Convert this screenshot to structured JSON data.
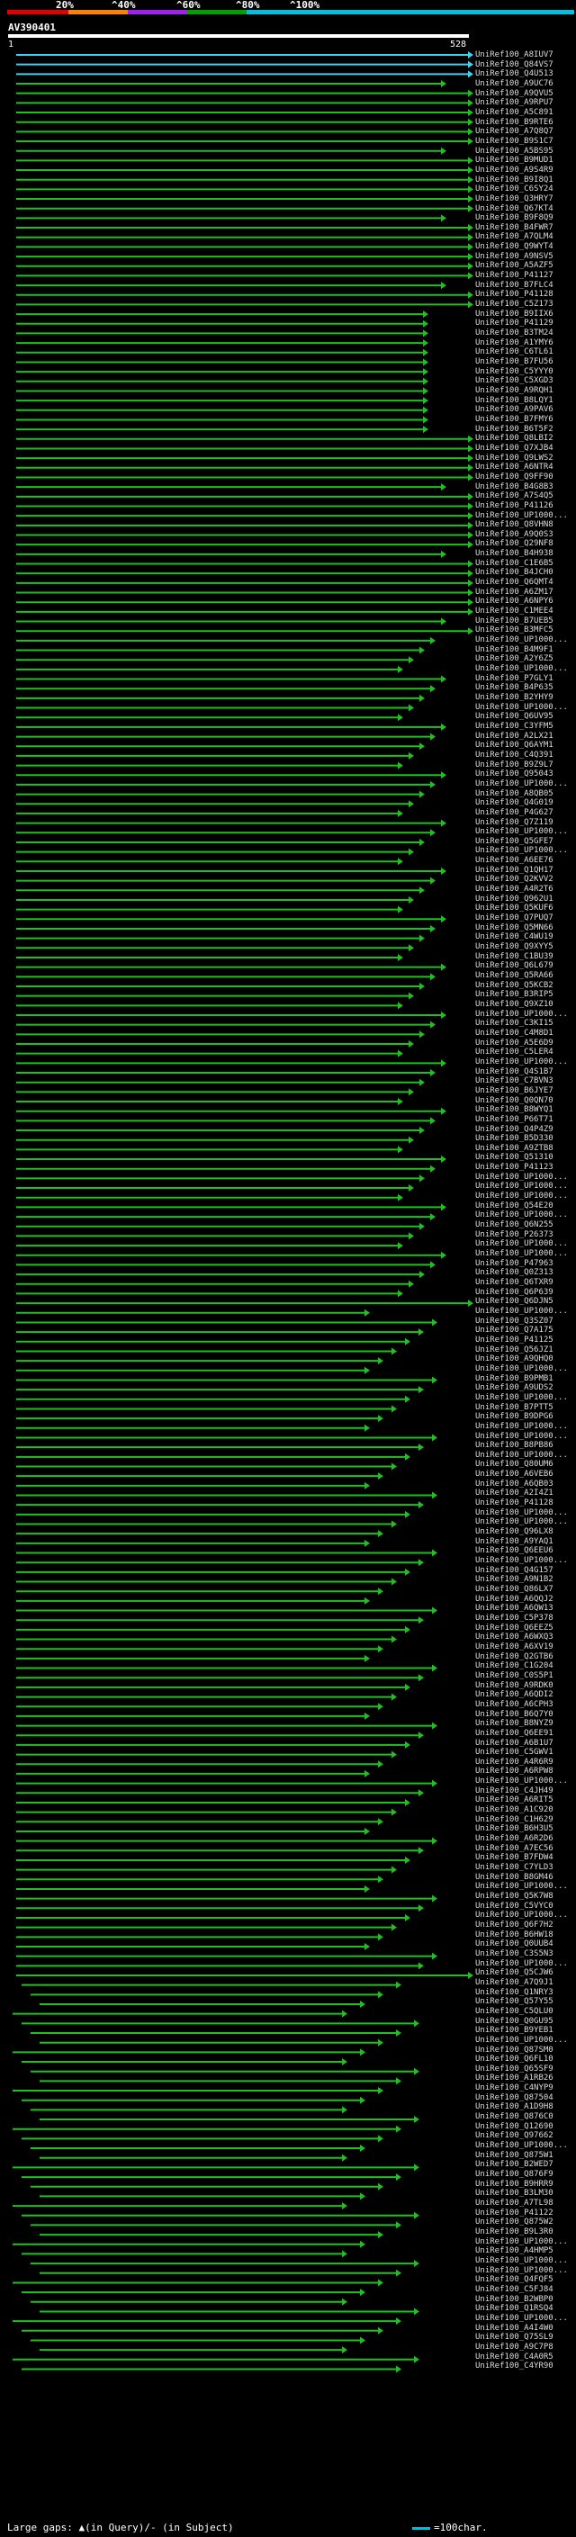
{
  "scale": {
    "labels": [
      "20%",
      "^40%",
      "^60%",
      "^80%",
      "^100%"
    ],
    "colors": [
      "#e00000",
      "#ff8000",
      "#a020f0",
      "#00a000",
      "#00c0e0"
    ]
  },
  "query": {
    "name": "AV390401",
    "start": "1",
    "end": "528"
  },
  "legend": {
    "large_gaps": "Large gaps: ▲(in Query)/- (in Subject)",
    "scale_note": "=100char."
  },
  "hits": [
    "UniRef100_A8IUV7",
    "UniRef100_Q84VS7",
    "UniRef100_Q4U513",
    "UniRef100_A9UC76",
    "UniRef100_A9QVU5",
    "UniRef100_A9RPU7",
    "UniRef100_A5C891",
    "UniRef100_B9RTE6",
    "UniRef100_A7Q8Q7",
    "UniRef100_B9S1C7",
    "UniRef100_A5BS95",
    "UniRef100_B9MUD1",
    "UniRef100_A9S4R9",
    "UniRef100_B9I8Q1",
    "UniRef100_C6SY24",
    "UniRef100_Q3HRY7",
    "UniRef100_Q67KT4",
    "UniRef100_B9F8Q9",
    "UniRef100_B4FWR7",
    "UniRef100_A7QLM4",
    "UniRef100_Q9WYT4",
    "UniRef100_A9NSV5",
    "UniRef100_A5AZF5",
    "UniRef100_P41127",
    "UniRef100_B7FLC4",
    "UniRef100_P41128",
    "UniRef100_C5Z173",
    "UniRef100_B9IIX6",
    "UniRef100_P41129",
    "UniRef100_B3TM24",
    "UniRef100_A1YMY6",
    "UniRef100_C6TL61",
    "UniRef100_B7FU56",
    "UniRef100_C5YYY0",
    "UniRef100_C5XGD3",
    "UniRef100_A9RQH1",
    "UniRef100_B8LQY1",
    "UniRef100_A9PAV6",
    "UniRef100_B7FMY6",
    "UniRef100_B6T5F2",
    "UniRef100_Q8LBI2",
    "UniRef100_Q7XJB4",
    "UniRef100_Q9LWS2",
    "UniRef100_A6NTR4",
    "UniRef100_Q9FF90",
    "UniRef100_B4G8B3",
    "UniRef100_A7S4Q5",
    "UniRef100_P41126",
    "UniRef100_UP1000...",
    "UniRef100_Q8VHN8",
    "UniRef100_A9Q0S3",
    "UniRef100_Q29NF8",
    "UniRef100_B4H938",
    "UniRef100_C1E6B5",
    "UniRef100_B4JCH0",
    "UniRef100_Q6QMT4",
    "UniRef100_A6ZM17",
    "UniRef100_A6NPY6",
    "UniRef100_C1MEE4",
    "UniRef100_B7UEB5",
    "UniRef100_B3MFC5",
    "UniRef100_UP1000...",
    "UniRef100_B4M9F1",
    "UniRef100_A2Y6Z5",
    "UniRef100_UP1000...",
    "UniRef100_P7GLY1",
    "UniRef100_B4P635",
    "UniRef100_B2YHY9",
    "UniRef100_UP1000...",
    "UniRef100_Q6UV95",
    "UniRef100_C3YFM5",
    "UniRef100_A2LX21",
    "UniRef100_Q6AYM1",
    "UniRef100_C4Q391",
    "UniRef100_B9Z9L7",
    "UniRef100_Q95043",
    "UniRef100_UP1000...",
    "UniRef100_A8QB05",
    "UniRef100_Q4G019",
    "UniRef100_P4G627",
    "UniRef100_Q7Z119",
    "UniRef100_UP1000...",
    "UniRef100_Q5GFE7",
    "UniRef100_UP1000...",
    "UniRef100_A6EE76",
    "UniRef100_Q1QH17",
    "UniRef100_Q2KVV2",
    "UniRef100_A4R2T6",
    "UniRef100_Q962U1",
    "UniRef100_Q5KUF6",
    "UniRef100_Q7PUQ7",
    "UniRef100_Q5MN66",
    "UniRef100_C4WU19",
    "UniRef100_Q9XYY5",
    "UniRef100_C1BU39",
    "UniRef100_Q6L679",
    "UniRef100_Q5RA66",
    "UniRef100_Q5KCB2",
    "UniRef100_B3RIP5",
    "UniRef100_Q9XZ10",
    "UniRef100_UP1000...",
    "UniRef100_C3KI15",
    "UniRef100_C4M8D1",
    "UniRef100_A5E6D9",
    "UniRef100_C5LER4",
    "UniRef100_UP1000...",
    "UniRef100_Q4S1B7",
    "UniRef100_C7BVN3",
    "UniRef100_B6JYE7",
    "UniRef100_Q0QN70",
    "UniRef100_B8WYQ1",
    "UniRef100_P66T71",
    "UniRef100_Q4P4Z9",
    "UniRef100_B5D330",
    "UniRef100_A9ZTB8",
    "UniRef100_Q51310",
    "UniRef100_P41123",
    "UniRef100_UP1000...",
    "UniRef100_UP1000...",
    "UniRef100_UP1000...",
    "UniRef100_Q54E20",
    "UniRef100_UP1000...",
    "UniRef100_Q6N255",
    "UniRef100_P26373",
    "UniRef100_UP1000...",
    "UniRef100_UP1000...",
    "UniRef100_P47963",
    "UniRef100_Q0Z313",
    "UniRef100_Q6TXR9",
    "UniRef100_Q6P639",
    "UniRef100_Q6DJN5",
    "UniRef100_UP1000...",
    "UniRef100_Q3SZ07",
    "UniRef100_Q7A175",
    "UniRef100_P41125",
    "UniRef100_Q56JZ1",
    "UniRef100_A9QHQ0",
    "UniRef100_UP1000...",
    "UniRef100_B9PMB1",
    "UniRef100_A9UDS2",
    "UniRef100_UP1000...",
    "UniRef100_B7PTT5",
    "UniRef100_B9DPG6",
    "UniRef100_UP1000...",
    "UniRef100_UP1000...",
    "UniRef100_B8PB86",
    "UniRef100_UP1000...",
    "UniRef100_Q80UM6",
    "UniRef100_A6VEB6",
    "UniRef100_A6QB03",
    "UniRef100_A2I4Z1",
    "UniRef100_P41128",
    "UniRef100_UP1000...",
    "UniRef100_UP1000...",
    "UniRef100_Q96LX8",
    "UniRef100_A9YAQ1",
    "UniRef100_Q6EEU6",
    "UniRef100_UP1000...",
    "UniRef100_Q4G157",
    "UniRef100_A9N1B2",
    "UniRef100_Q86LX7",
    "UniRef100_A6QQJ2",
    "UniRef100_A6QW13",
    "UniRef100_C5P378",
    "UniRef100_Q6EEZ5",
    "UniRef100_A6WXQ3",
    "UniRef100_A6XV19",
    "UniRef100_Q2GTB6",
    "UniRef100_C1G204",
    "UniRef100_C0S5P1",
    "UniRef100_A9RDK0",
    "UniRef100_A6QDI2",
    "UniRef100_A6CPH3",
    "UniRef100_B6Q7Y0",
    "UniRef100_B8NYZ9",
    "UniRef100_Q6EE91",
    "UniRef100_A6B1U7",
    "UniRef100_C5GWV1",
    "UniRef100_A4R6R9",
    "UniRef100_A6RPW8",
    "UniRef100_UP1000...",
    "UniRef100_C4JH49",
    "UniRef100_A6RIT5",
    "UniRef100_A1C920",
    "UniRef100_C1H629",
    "UniRef100_B6H3U5",
    "UniRef100_A6R2D6",
    "UniRef100_A7EC56",
    "UniRef100_B7FDW4",
    "UniRef100_C7YLD3",
    "UniRef100_B8GM46",
    "UniRef100_UP1000...",
    "UniRef100_Q5K7W8",
    "UniRef100_C5VYC0",
    "UniRef100_UP1000...",
    "UniRef100_Q6F7H2",
    "UniRef100_B6HW18",
    "UniRef100_Q0UUB4",
    "UniRef100_C3S5N3",
    "UniRef100_UP1000...",
    "UniRef100_Q5CJW6",
    "UniRef100_A7Q9J1",
    "UniRef100_Q1NRY3",
    "UniRef100_Q57Y55",
    "UniRef100_C5QLU0",
    "UniRef100_Q0GU95",
    "UniRef100_B9YEB1",
    "UniRef100_UP1000...",
    "UniRef100_Q87SM0",
    "UniRef100_Q6FL10",
    "UniRef100_Q65SF9",
    "UniRef100_A1RB26",
    "UniRef100_C4NYP9",
    "UniRef100_Q87504",
    "UniRef100_A1D9H8",
    "UniRef100_Q876C0",
    "UniRef100_Q12690",
    "UniRef100_Q97662",
    "UniRef100_UP1000...",
    "UniRef100_Q875W1",
    "UniRef100_B2WED7",
    "UniRef100_Q876F9",
    "UniRef100_B9HRR9",
    "UniRef100_B3LM30",
    "UniRef100_A7TL98",
    "UniRef100_P41122",
    "UniRef100_Q875W2",
    "UniRef100_B9L3R0",
    "UniRef100_UP1000...",
    "UniRef100_A4HMP5",
    "UniRef100_UP1000...",
    "UniRef100_UP1000...",
    "UniRef100_Q4FQF5",
    "UniRef100_C5FJ84",
    "UniRef100_B2WBP0",
    "UniRef100_Q1RSQ4",
    "UniRef100_UP1000...",
    "UniRef100_A4I4W0",
    "UniRef100_Q75SL9",
    "UniRef100_A9C7P8",
    "UniRef100_C4A0R5",
    "UniRef100_C4YR90"
  ]
}
